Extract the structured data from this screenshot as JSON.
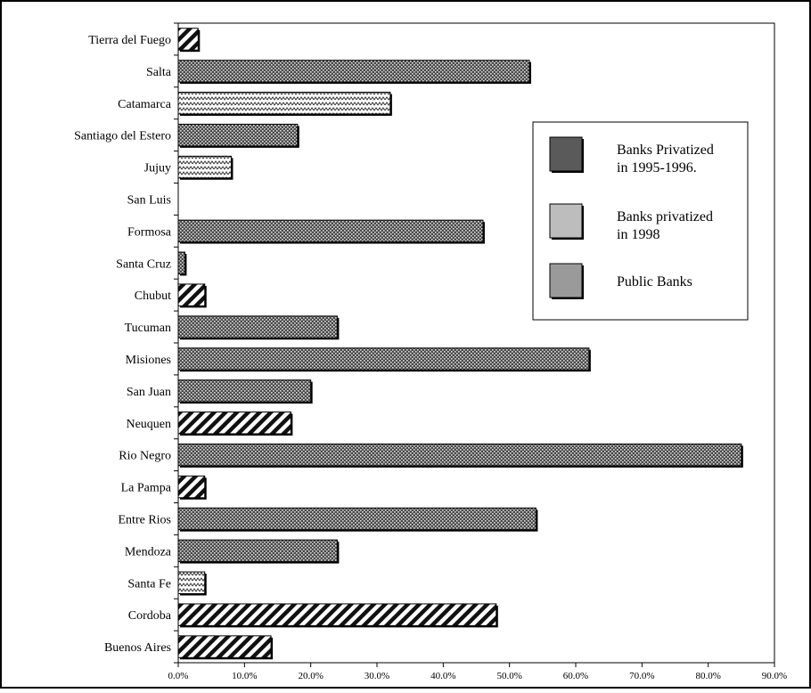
{
  "chart_data": {
    "type": "bar",
    "orientation": "horizontal",
    "categories": [
      "Tierra del Fuego",
      "Salta",
      "Catamarca",
      "Santiago del Estero",
      "Jujuy",
      "San Luis",
      "Formosa",
      "Santa Cruz",
      "Chubut",
      "Tucuman",
      "Misiones",
      "San Juan",
      "Neuquen",
      "Rio Negro",
      "La Pampa",
      "Entre Rios",
      "Mendoza",
      "Santa Fe",
      "Cordoba",
      "Buenos Aires"
    ],
    "values": [
      3.0,
      53.0,
      32.0,
      18.0,
      8.0,
      0.0,
      46.0,
      1.0,
      4.0,
      24.0,
      62.0,
      20.0,
      17.0,
      85.0,
      4.0,
      54.0,
      24.0,
      4.0,
      48.0,
      14.0
    ],
    "groups": [
      "privatized_95_96",
      "public",
      "privatized_98",
      "public",
      "privatized_98",
      "public",
      "public",
      "public",
      "privatized_95_96",
      "public",
      "public",
      "public",
      "privatized_95_96",
      "public",
      "privatized_95_96",
      "public",
      "public",
      "privatized_98",
      "privatized_95_96",
      "privatized_95_96"
    ],
    "xlim": [
      0,
      90
    ],
    "xticks": [
      0,
      10,
      20,
      30,
      40,
      50,
      60,
      70,
      80,
      90
    ],
    "xtick_labels": [
      "0.0%",
      "10.0%",
      "20.0%",
      "30.0%",
      "40.0%",
      "50.0%",
      "60.0%",
      "70.0%",
      "80.0%",
      "90.0%"
    ],
    "legend": {
      "placement": "right",
      "entries": [
        {
          "key": "privatized_95_96",
          "lines": [
            "Banks Privatized",
            "in 1995-1996."
          ],
          "color": "#5a5a5a"
        },
        {
          "key": "privatized_98",
          "lines": [
            "Banks privatized",
            "in 1998"
          ],
          "color": "#bdbdbd"
        },
        {
          "key": "public",
          "lines": [
            "Public Banks"
          ],
          "color": "#9a9a9a"
        }
      ]
    },
    "grid": false
  }
}
